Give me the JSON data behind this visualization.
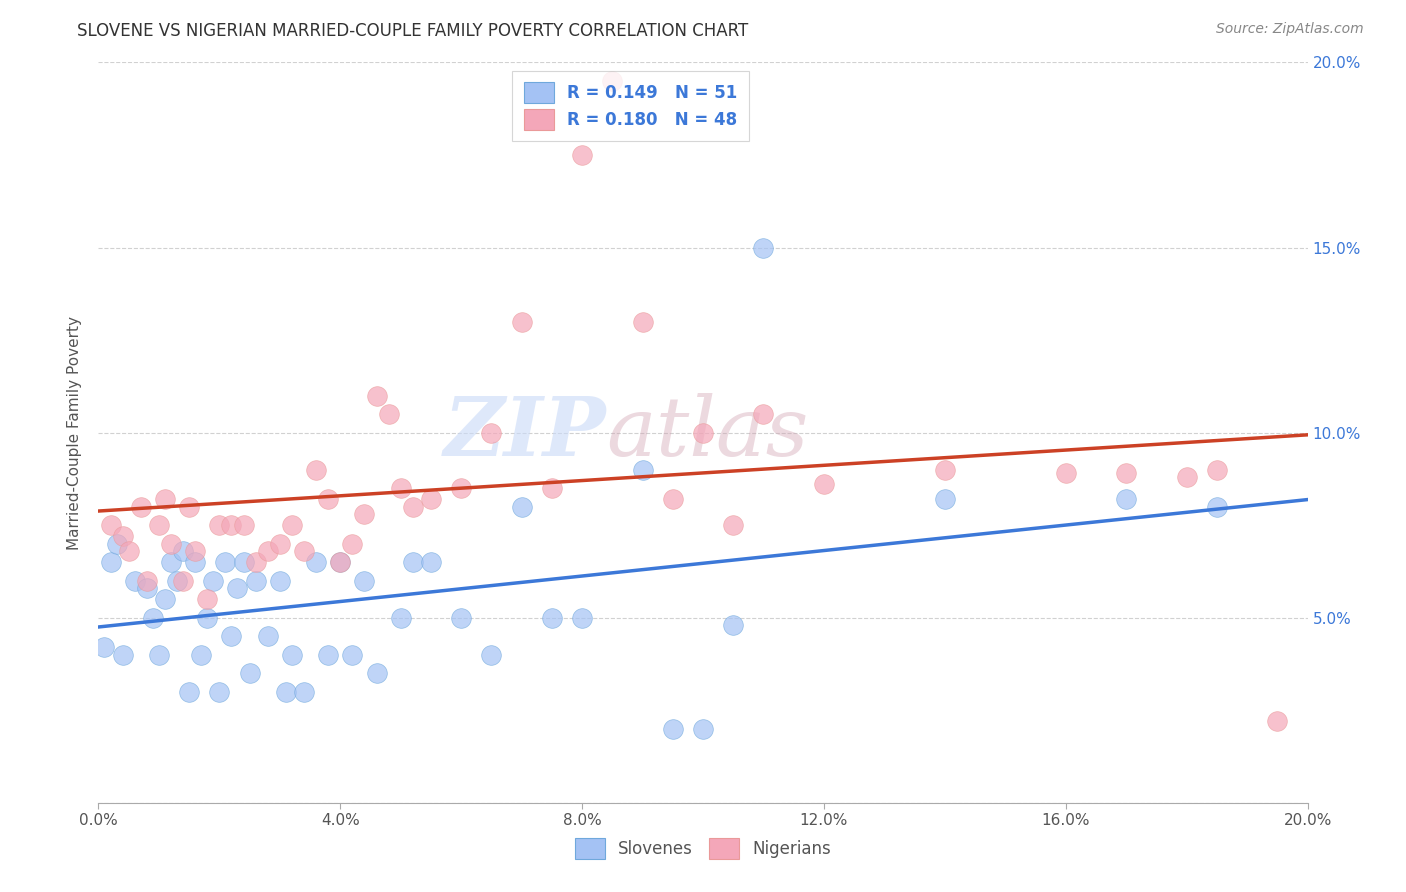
{
  "title": "SLOVENE VS NIGERIAN MARRIED-COUPLE FAMILY POVERTY CORRELATION CHART",
  "source": "Source: ZipAtlas.com",
  "ylabel": "Married-Couple Family Poverty",
  "xlim": [
    0.0,
    0.2
  ],
  "ylim": [
    0.0,
    0.2
  ],
  "xticks": [
    0.0,
    0.04,
    0.08,
    0.12,
    0.16,
    0.2
  ],
  "yticks": [
    0.0,
    0.05,
    0.1,
    0.15,
    0.2
  ],
  "slovene_color": "#a4c2f4",
  "nigerian_color": "#f4a7b9",
  "slovene_edge_color": "#6fa8dc",
  "nigerian_edge_color": "#ea9999",
  "line_slovene_color": "#3c78d8",
  "line_nigerian_color": "#cc4125",
  "R_slovene": 0.149,
  "N_slovene": 51,
  "R_nigerian": 0.18,
  "N_nigerian": 48,
  "watermark_zip": "ZIP",
  "watermark_atlas": "atlas",
  "slovene_x": [
    0.001,
    0.002,
    0.003,
    0.004,
    0.006,
    0.008,
    0.009,
    0.01,
    0.011,
    0.012,
    0.013,
    0.014,
    0.015,
    0.016,
    0.017,
    0.018,
    0.019,
    0.02,
    0.021,
    0.022,
    0.023,
    0.024,
    0.025,
    0.026,
    0.028,
    0.03,
    0.031,
    0.032,
    0.034,
    0.036,
    0.038,
    0.04,
    0.042,
    0.044,
    0.046,
    0.05,
    0.052,
    0.055,
    0.06,
    0.065,
    0.07,
    0.075,
    0.08,
    0.09,
    0.095,
    0.1,
    0.105,
    0.11,
    0.14,
    0.17,
    0.185
  ],
  "slovene_y": [
    0.042,
    0.065,
    0.07,
    0.04,
    0.06,
    0.058,
    0.05,
    0.04,
    0.055,
    0.065,
    0.06,
    0.068,
    0.03,
    0.065,
    0.04,
    0.05,
    0.06,
    0.03,
    0.065,
    0.045,
    0.058,
    0.065,
    0.035,
    0.06,
    0.045,
    0.06,
    0.03,
    0.04,
    0.03,
    0.065,
    0.04,
    0.065,
    0.04,
    0.06,
    0.035,
    0.05,
    0.065,
    0.065,
    0.05,
    0.04,
    0.08,
    0.05,
    0.05,
    0.09,
    0.02,
    0.02,
    0.048,
    0.15,
    0.082,
    0.082,
    0.08
  ],
  "nigerian_x": [
    0.002,
    0.004,
    0.005,
    0.007,
    0.008,
    0.01,
    0.011,
    0.012,
    0.014,
    0.015,
    0.016,
    0.018,
    0.02,
    0.022,
    0.024,
    0.026,
    0.028,
    0.03,
    0.032,
    0.034,
    0.036,
    0.038,
    0.04,
    0.042,
    0.044,
    0.046,
    0.048,
    0.05,
    0.052,
    0.055,
    0.06,
    0.065,
    0.07,
    0.075,
    0.08,
    0.085,
    0.09,
    0.095,
    0.1,
    0.105,
    0.11,
    0.12,
    0.14,
    0.16,
    0.17,
    0.18,
    0.185,
    0.195
  ],
  "nigerian_y": [
    0.075,
    0.072,
    0.068,
    0.08,
    0.06,
    0.075,
    0.082,
    0.07,
    0.06,
    0.08,
    0.068,
    0.055,
    0.075,
    0.075,
    0.075,
    0.065,
    0.068,
    0.07,
    0.075,
    0.068,
    0.09,
    0.082,
    0.065,
    0.07,
    0.078,
    0.11,
    0.105,
    0.085,
    0.08,
    0.082,
    0.085,
    0.1,
    0.13,
    0.085,
    0.175,
    0.195,
    0.13,
    0.082,
    0.1,
    0.075,
    0.105,
    0.086,
    0.09,
    0.089,
    0.089,
    0.088,
    0.09,
    0.022
  ]
}
